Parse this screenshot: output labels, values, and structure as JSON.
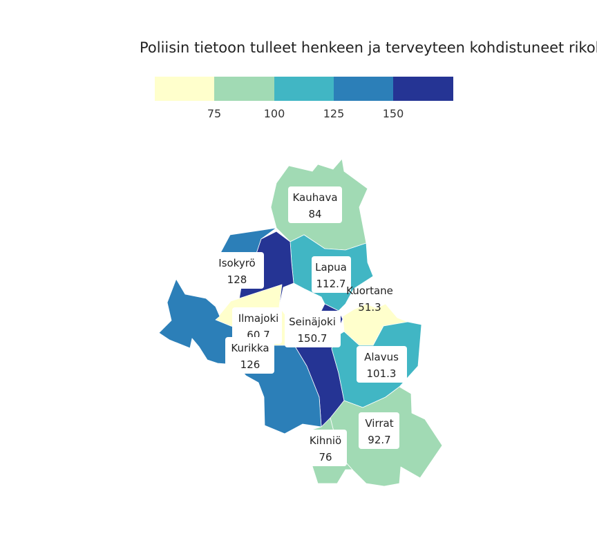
{
  "title": "Poliisin tietoon tulleet henkeen ja terveyteen kohdistuneet rikokset",
  "legend": {
    "breaks": [
      75,
      100,
      125,
      150
    ],
    "tick_labels": [
      "75",
      "100",
      "125",
      "150"
    ],
    "colors": [
      "#ffffcc",
      "#a1dab4",
      "#41b6c4",
      "#2c7fb8",
      "#253494"
    ]
  },
  "chart_data": {
    "type": "choropleth",
    "regions": [
      {
        "id": "kauhava",
        "name": "Kauhava",
        "value": 84,
        "value_label": "84"
      },
      {
        "id": "isokyro",
        "name": "Isokyrö",
        "value": 128,
        "value_label": "128"
      },
      {
        "id": "lapua",
        "name": "Lapua",
        "value": 112.7,
        "value_label": "112.7"
      },
      {
        "id": "kuortane",
        "name": "Kuortane",
        "value": 51.3,
        "value_label": "51.3"
      },
      {
        "id": "ilmajoki",
        "name": "Ilmajoki",
        "value": 60.7,
        "value_label": "60.7"
      },
      {
        "id": "seinajoki",
        "name": "Seinäjoki",
        "value": 150.7,
        "value_label": "150.7"
      },
      {
        "id": "kurikka",
        "name": "Kurikka",
        "value": 126,
        "value_label": "126"
      },
      {
        "id": "alavus",
        "name": "Alavus",
        "value": 101.3,
        "value_label": "101.3"
      },
      {
        "id": "virrat",
        "name": "Virrat",
        "value": 92.7,
        "value_label": "92.7"
      },
      {
        "id": "kihnio",
        "name": "Kihniö",
        "value": 76,
        "value_label": "76"
      }
    ]
  }
}
